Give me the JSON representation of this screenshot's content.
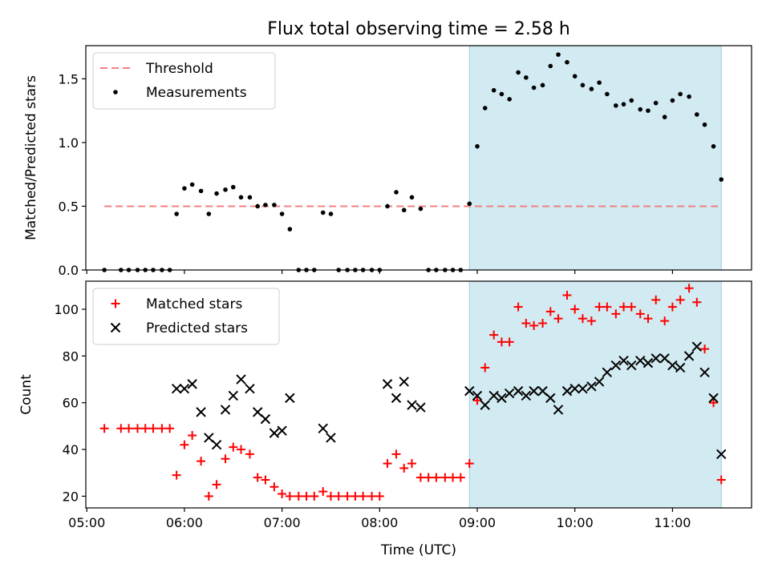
{
  "chart_data": {
    "title": "Flux total observing time = 2.58 h",
    "xlabel": "Time (UTC)",
    "x_ticks": [
      "05:00",
      "06:00",
      "07:00",
      "08:00",
      "09:00",
      "10:00",
      "11:00"
    ],
    "x_unit": "hours UTC",
    "x_range": [
      4.99,
      11.81
    ],
    "highlight_interval": {
      "start": 8.92,
      "end": 11.5,
      "color": "#add8e6"
    },
    "panels": [
      {
        "type": "scatter",
        "ylabel": "Matched/Predicted stars",
        "ylim": [
          0,
          1.76
        ],
        "y_ticks": [
          "0.0",
          "0.5",
          "1.0",
          "1.5"
        ],
        "legend_position": "upper-left",
        "threshold": {
          "name": "Threshold",
          "value": 0.5,
          "x_start": 5.18,
          "x_end": 11.5,
          "color": "#f08080",
          "style": "dashed"
        },
        "series": [
          {
            "name": "Measurements",
            "color": "#000000",
            "marker": "dot",
            "x": [
              5.18,
              5.35,
              5.43,
              5.52,
              5.6,
              5.68,
              5.77,
              5.85,
              5.92,
              6.0,
              6.08,
              6.17,
              6.25,
              6.33,
              6.42,
              6.5,
              6.58,
              6.67,
              6.75,
              6.83,
              6.92,
              7.0,
              7.08,
              7.17,
              7.25,
              7.33,
              7.42,
              7.5,
              7.58,
              7.67,
              7.75,
              7.83,
              7.92,
              8.0,
              8.08,
              8.17,
              8.25,
              8.33,
              8.42,
              8.5,
              8.58,
              8.67,
              8.75,
              8.83,
              8.92,
              9.0,
              9.08,
              9.17,
              9.25,
              9.33,
              9.42,
              9.5,
              9.58,
              9.67,
              9.75,
              9.83,
              9.92,
              10.0,
              10.08,
              10.17,
              10.25,
              10.33,
              10.42,
              10.5,
              10.58,
              10.67,
              10.75,
              10.83,
              10.92,
              11.0,
              11.08,
              11.17,
              11.25,
              11.33,
              11.42,
              11.5
            ],
            "y": [
              0,
              0,
              0,
              0,
              0,
              0,
              0,
              0,
              0.44,
              0.64,
              0.67,
              0.62,
              0.44,
              0.6,
              0.63,
              0.65,
              0.57,
              0.57,
              0.5,
              0.51,
              0.51,
              0.44,
              0.32,
              0,
              0,
              0,
              0.45,
              0.44,
              0,
              0,
              0,
              0,
              0,
              0,
              0.5,
              0.61,
              0.47,
              0.57,
              0.48,
              0,
              0,
              0,
              0,
              0,
              0.52,
              0.97,
              1.27,
              1.41,
              1.38,
              1.34,
              1.55,
              1.51,
              1.43,
              1.45,
              1.6,
              1.69,
              1.63,
              1.52,
              1.45,
              1.42,
              1.47,
              1.38,
              1.29,
              1.3,
              1.33,
              1.26,
              1.25,
              1.31,
              1.2,
              1.33,
              1.38,
              1.36,
              1.22,
              1.14,
              0.97,
              0.71
            ]
          }
        ]
      },
      {
        "type": "scatter",
        "ylabel": "Count",
        "ylim": [
          15,
          112
        ],
        "y_ticks": [
          "20",
          "40",
          "60",
          "80",
          "100"
        ],
        "legend_position": "upper-left",
        "series": [
          {
            "name": "Matched stars",
            "color": "#ff0000",
            "marker": "plus",
            "x": [
              5.18,
              5.35,
              5.43,
              5.52,
              5.6,
              5.68,
              5.77,
              5.85,
              5.92,
              6.0,
              6.08,
              6.17,
              6.25,
              6.33,
              6.42,
              6.5,
              6.58,
              6.67,
              6.75,
              6.83,
              6.92,
              7.0,
              7.08,
              7.17,
              7.25,
              7.33,
              7.42,
              7.5,
              7.58,
              7.67,
              7.75,
              7.83,
              7.92,
              8.0,
              8.08,
              8.17,
              8.25,
              8.33,
              8.42,
              8.5,
              8.58,
              8.67,
              8.75,
              8.83,
              8.92,
              9.0,
              9.08,
              9.17,
              9.25,
              9.33,
              9.42,
              9.5,
              9.58,
              9.67,
              9.75,
              9.83,
              9.92,
              10.0,
              10.08,
              10.17,
              10.25,
              10.33,
              10.42,
              10.5,
              10.58,
              10.67,
              10.75,
              10.83,
              10.92,
              11.0,
              11.08,
              11.17,
              11.25,
              11.33,
              11.42,
              11.5
            ],
            "y": [
              49,
              49,
              49,
              49,
              49,
              49,
              49,
              49,
              29,
              42,
              46,
              35,
              20,
              25,
              36,
              41,
              40,
              38,
              28,
              27,
              24,
              21,
              20,
              20,
              20,
              20,
              22,
              20,
              20,
              20,
              20,
              20,
              20,
              20,
              34,
              38,
              32,
              34,
              28,
              28,
              28,
              28,
              28,
              28,
              34,
              61,
              75,
              89,
              86,
              86,
              101,
              94,
              93,
              94,
              99,
              96,
              106,
              100,
              96,
              95,
              101,
              101,
              98,
              101,
              101,
              98,
              96,
              104,
              95,
              101,
              104,
              109,
              103,
              83,
              60,
              27
            ]
          },
          {
            "name": "Predicted stars",
            "color": "#000000",
            "marker": "x",
            "x": [
              5.92,
              6.0,
              6.08,
              6.17,
              6.25,
              6.33,
              6.42,
              6.5,
              6.58,
              6.67,
              6.75,
              6.83,
              6.92,
              7.0,
              7.08,
              7.42,
              7.5,
              8.08,
              8.17,
              8.25,
              8.33,
              8.42,
              8.92,
              9.0,
              9.08,
              9.17,
              9.25,
              9.33,
              9.42,
              9.5,
              9.58,
              9.67,
              9.75,
              9.83,
              9.92,
              10.0,
              10.08,
              10.17,
              10.25,
              10.33,
              10.42,
              10.5,
              10.58,
              10.67,
              10.75,
              10.83,
              10.92,
              11.0,
              11.08,
              11.17,
              11.25,
              11.33,
              11.42,
              11.5
            ],
            "y": [
              66,
              66,
              68,
              56,
              45,
              42,
              57,
              63,
              70,
              66,
              56,
              53,
              47,
              48,
              62,
              49,
              45,
              68,
              62,
              69,
              59,
              58,
              65,
              63,
              59,
              63,
              62,
              64,
              65,
              63,
              65,
              65,
              62,
              57,
              65,
              66,
              66,
              67,
              69,
              73,
              76,
              78,
              76,
              78,
              77,
              79,
              79,
              76,
              75,
              80,
              84,
              73,
              62,
              38
            ]
          }
        ]
      }
    ]
  }
}
